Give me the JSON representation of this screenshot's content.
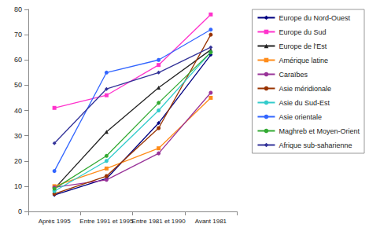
{
  "chart_data": {
    "type": "line",
    "categories": [
      "Après 1995",
      "Entre 1991 et 1995",
      "Entre 1981 et 1990",
      "Avant 1981"
    ],
    "series": [
      {
        "name": "Europe du Nord-Ouest",
        "color": "#000080",
        "marker": "diamond",
        "values": [
          6.5,
          13,
          35,
          62
        ]
      },
      {
        "name": "Europe du Sud",
        "color": "#ff33cc",
        "marker": "square",
        "values": [
          41,
          46,
          58,
          78
        ]
      },
      {
        "name": "Europe de l'Est",
        "color": "#222222",
        "marker": "triangle",
        "values": [
          9,
          31.5,
          49,
          64
        ]
      },
      {
        "name": "Amérique latine",
        "color": "#ff8c1a",
        "marker": "square",
        "values": [
          10,
          17,
          25,
          45
        ]
      },
      {
        "name": "Caraïbes",
        "color": "#993399",
        "marker": "circle",
        "values": [
          9.5,
          12.5,
          23,
          47
        ]
      },
      {
        "name": "Asie méridionale",
        "color": "#993300",
        "marker": "circle",
        "values": [
          7,
          14,
          33,
          70
        ]
      },
      {
        "name": "Asie du Sud-Est",
        "color": "#33cccc",
        "marker": "circle",
        "values": [
          8,
          20,
          40,
          63
        ]
      },
      {
        "name": "Asie orientale",
        "color": "#3366ff",
        "marker": "circle",
        "values": [
          16,
          55,
          60,
          72
        ]
      },
      {
        "name": "Maghreb et Moyen-Orient",
        "color": "#33aa33",
        "marker": "circle",
        "values": [
          9,
          22,
          43,
          63
        ]
      },
      {
        "name": "Afrique sub-saharienne",
        "color": "#333399",
        "marker": "diamond",
        "values": [
          27,
          48.5,
          55,
          65
        ]
      }
    ],
    "ylim": [
      0,
      80
    ],
    "yticks": [
      0,
      10,
      20,
      30,
      40,
      50,
      60,
      70,
      80
    ],
    "grid": false,
    "legend": "right"
  }
}
